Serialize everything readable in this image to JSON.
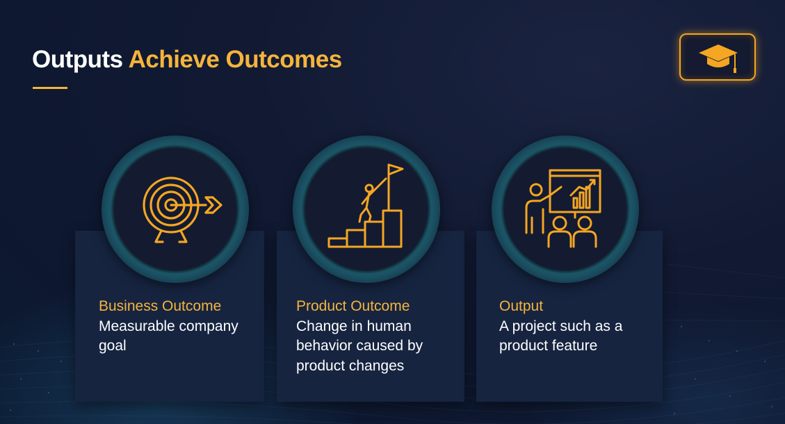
{
  "slide": {
    "title_plain": "Outputs",
    "title_accent": "Achieve Outcomes"
  },
  "badge": {
    "icon": "graduation-cap-icon"
  },
  "cards": [
    {
      "icon": "target-icon",
      "heading": "Business Outcome",
      "description": "Measurable company goal"
    },
    {
      "icon": "climbing-stairs-flag-icon",
      "heading": "Product Outcome",
      "description": "Change in human behavior caused by product changes"
    },
    {
      "icon": "presentation-icon",
      "heading": "Output",
      "description": "A project such as a product feature"
    }
  ],
  "colors": {
    "accent": "#f5b43c",
    "background": "#121a33",
    "card": "#162440",
    "text": "#ffffff"
  }
}
